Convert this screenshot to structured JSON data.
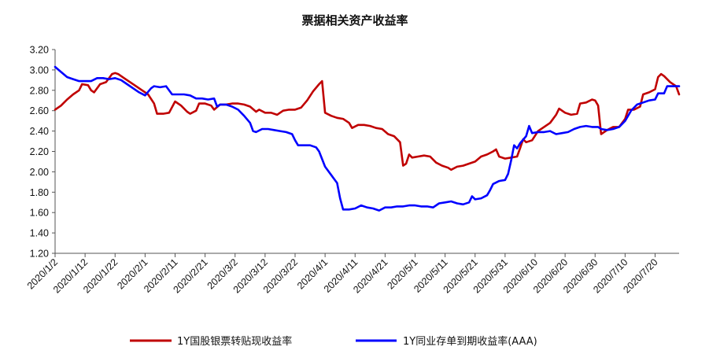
{
  "chart_data": {
    "type": "line",
    "title": "票据相关资产收益率",
    "xlabel": "",
    "ylabel": "",
    "ylim": [
      1.2,
      3.2
    ],
    "yticks": [
      "1.20",
      "1.40",
      "1.60",
      "1.80",
      "2.00",
      "2.20",
      "2.40",
      "2.60",
      "2.80",
      "3.00",
      "3.20"
    ],
    "xticks": [
      {
        "day": 0,
        "label": "2020/1/2"
      },
      {
        "day": 10,
        "label": "2020/1/12"
      },
      {
        "day": 20,
        "label": "2020/1/22"
      },
      {
        "day": 30,
        "label": "2020/2/1"
      },
      {
        "day": 40,
        "label": "2020/2/11"
      },
      {
        "day": 50,
        "label": "2020/2/21"
      },
      {
        "day": 60,
        "label": "2020/3/2"
      },
      {
        "day": 70,
        "label": "2020/3/12"
      },
      {
        "day": 80,
        "label": "2020/3/22"
      },
      {
        "day": 90,
        "label": "2020/4/1"
      },
      {
        "day": 100,
        "label": "2020/4/11"
      },
      {
        "day": 110,
        "label": "2020/4/21"
      },
      {
        "day": 120,
        "label": "2020/5/1"
      },
      {
        "day": 130,
        "label": "2020/5/11"
      },
      {
        "day": 140,
        "label": "2020/5/21"
      },
      {
        "day": 150,
        "label": "2020/5/31"
      },
      {
        "day": 160,
        "label": "2020/6/10"
      },
      {
        "day": 170,
        "label": "2020/6/20"
      },
      {
        "day": 180,
        "label": "2020/6/30"
      },
      {
        "day": 190,
        "label": "2020/7/10"
      },
      {
        "day": 200,
        "label": "2020/7/20"
      }
    ],
    "x_end_day": 208,
    "grid": false,
    "legend_position": "bottom",
    "series": [
      {
        "name": "1Y国股银票转贴现收益率",
        "color": "#C00000",
        "points": [
          [
            0,
            2.61
          ],
          [
            2,
            2.65
          ],
          [
            4,
            2.71
          ],
          [
            6,
            2.76
          ],
          [
            8,
            2.8
          ],
          [
            9,
            2.86
          ],
          [
            11,
            2.85
          ],
          [
            12,
            2.8
          ],
          [
            13,
            2.78
          ],
          [
            15,
            2.86
          ],
          [
            17,
            2.88
          ],
          [
            19,
            2.96
          ],
          [
            20,
            2.97
          ],
          [
            21,
            2.96
          ],
          [
            23,
            2.92
          ],
          [
            25,
            2.88
          ],
          [
            27,
            2.84
          ],
          [
            29,
            2.8
          ],
          [
            31,
            2.76
          ],
          [
            33,
            2.67
          ],
          [
            34,
            2.57
          ],
          [
            36,
            2.57
          ],
          [
            38,
            2.58
          ],
          [
            40,
            2.69
          ],
          [
            42,
            2.65
          ],
          [
            44,
            2.59
          ],
          [
            45,
            2.57
          ],
          [
            47,
            2.6
          ],
          [
            48,
            2.67
          ],
          [
            50,
            2.67
          ],
          [
            52,
            2.65
          ],
          [
            53,
            2.61
          ],
          [
            55,
            2.66
          ],
          [
            57,
            2.66
          ],
          [
            59,
            2.67
          ],
          [
            61,
            2.67
          ],
          [
            63,
            2.66
          ],
          [
            65,
            2.64
          ],
          [
            67,
            2.59
          ],
          [
            68,
            2.61
          ],
          [
            70,
            2.58
          ],
          [
            72,
            2.58
          ],
          [
            74,
            2.56
          ],
          [
            76,
            2.6
          ],
          [
            78,
            2.61
          ],
          [
            80,
            2.61
          ],
          [
            82,
            2.63
          ],
          [
            84,
            2.7
          ],
          [
            86,
            2.79
          ],
          [
            88,
            2.86
          ],
          [
            89,
            2.89
          ],
          [
            90,
            2.58
          ],
          [
            92,
            2.55
          ],
          [
            94,
            2.53
          ],
          [
            96,
            2.52
          ],
          [
            98,
            2.48
          ],
          [
            99,
            2.43
          ],
          [
            101,
            2.46
          ],
          [
            103,
            2.46
          ],
          [
            105,
            2.45
          ],
          [
            107,
            2.43
          ],
          [
            109,
            2.42
          ],
          [
            111,
            2.37
          ],
          [
            113,
            2.35
          ],
          [
            115,
            2.29
          ],
          [
            116,
            2.06
          ],
          [
            117,
            2.08
          ],
          [
            118,
            2.17
          ],
          [
            119,
            2.14
          ],
          [
            121,
            2.15
          ],
          [
            123,
            2.16
          ],
          [
            125,
            2.15
          ],
          [
            127,
            2.09
          ],
          [
            129,
            2.06
          ],
          [
            131,
            2.04
          ],
          [
            132,
            2.02
          ],
          [
            134,
            2.05
          ],
          [
            136,
            2.06
          ],
          [
            138,
            2.08
          ],
          [
            140,
            2.1
          ],
          [
            142,
            2.15
          ],
          [
            144,
            2.17
          ],
          [
            146,
            2.2
          ],
          [
            147,
            2.22
          ],
          [
            148,
            2.15
          ],
          [
            150,
            2.13
          ],
          [
            152,
            2.14
          ],
          [
            154,
            2.15
          ],
          [
            155,
            2.23
          ],
          [
            156,
            2.32
          ],
          [
            157,
            2.29
          ],
          [
            159,
            2.31
          ],
          [
            161,
            2.4
          ],
          [
            163,
            2.44
          ],
          [
            165,
            2.48
          ],
          [
            167,
            2.56
          ],
          [
            168,
            2.62
          ],
          [
            170,
            2.58
          ],
          [
            172,
            2.56
          ],
          [
            174,
            2.57
          ],
          [
            175,
            2.67
          ],
          [
            177,
            2.68
          ],
          [
            179,
            2.71
          ],
          [
            180,
            2.7
          ],
          [
            181,
            2.65
          ],
          [
            182,
            2.37
          ],
          [
            184,
            2.41
          ],
          [
            186,
            2.44
          ],
          [
            188,
            2.44
          ],
          [
            190,
            2.52
          ],
          [
            191,
            2.61
          ],
          [
            193,
            2.61
          ],
          [
            195,
            2.64
          ],
          [
            196,
            2.76
          ],
          [
            198,
            2.78
          ],
          [
            200,
            2.81
          ],
          [
            201,
            2.93
          ],
          [
            202,
            2.96
          ],
          [
            203,
            2.94
          ],
          [
            205,
            2.88
          ],
          [
            207,
            2.84
          ],
          [
            208,
            2.76
          ]
        ]
      },
      {
        "name": "1Y同业存单到期收益率(AAA)",
        "color": "#0000FF",
        "points": [
          [
            0,
            3.03
          ],
          [
            2,
            2.98
          ],
          [
            4,
            2.93
          ],
          [
            6,
            2.91
          ],
          [
            8,
            2.89
          ],
          [
            10,
            2.89
          ],
          [
            12,
            2.89
          ],
          [
            14,
            2.92
          ],
          [
            16,
            2.92
          ],
          [
            18,
            2.91
          ],
          [
            20,
            2.92
          ],
          [
            22,
            2.9
          ],
          [
            24,
            2.86
          ],
          [
            26,
            2.82
          ],
          [
            28,
            2.78
          ],
          [
            30,
            2.75
          ],
          [
            32,
            2.82
          ],
          [
            33,
            2.84
          ],
          [
            35,
            2.83
          ],
          [
            37,
            2.84
          ],
          [
            39,
            2.76
          ],
          [
            41,
            2.76
          ],
          [
            43,
            2.76
          ],
          [
            45,
            2.75
          ],
          [
            47,
            2.72
          ],
          [
            49,
            2.72
          ],
          [
            51,
            2.71
          ],
          [
            53,
            2.72
          ],
          [
            54,
            2.64
          ],
          [
            55,
            2.66
          ],
          [
            57,
            2.66
          ],
          [
            59,
            2.64
          ],
          [
            61,
            2.61
          ],
          [
            63,
            2.55
          ],
          [
            65,
            2.48
          ],
          [
            66,
            2.4
          ],
          [
            67,
            2.39
          ],
          [
            69,
            2.42
          ],
          [
            71,
            2.42
          ],
          [
            73,
            2.41
          ],
          [
            75,
            2.4
          ],
          [
            77,
            2.39
          ],
          [
            79,
            2.37
          ],
          [
            80,
            2.31
          ],
          [
            81,
            2.26
          ],
          [
            83,
            2.26
          ],
          [
            85,
            2.26
          ],
          [
            87,
            2.24
          ],
          [
            88,
            2.2
          ],
          [
            90,
            2.05
          ],
          [
            92,
            1.97
          ],
          [
            93,
            1.93
          ],
          [
            94,
            1.89
          ],
          [
            95,
            1.74
          ],
          [
            96,
            1.63
          ],
          [
            98,
            1.63
          ],
          [
            100,
            1.64
          ],
          [
            102,
            1.67
          ],
          [
            104,
            1.65
          ],
          [
            106,
            1.64
          ],
          [
            108,
            1.62
          ],
          [
            110,
            1.65
          ],
          [
            112,
            1.65
          ],
          [
            114,
            1.66
          ],
          [
            116,
            1.66
          ],
          [
            118,
            1.67
          ],
          [
            120,
            1.67
          ],
          [
            122,
            1.66
          ],
          [
            124,
            1.66
          ],
          [
            126,
            1.65
          ],
          [
            128,
            1.69
          ],
          [
            130,
            1.7
          ],
          [
            132,
            1.71
          ],
          [
            134,
            1.69
          ],
          [
            136,
            1.68
          ],
          [
            138,
            1.7
          ],
          [
            139,
            1.76
          ],
          [
            140,
            1.73
          ],
          [
            142,
            1.74
          ],
          [
            144,
            1.77
          ],
          [
            145,
            1.82
          ],
          [
            146,
            1.88
          ],
          [
            148,
            1.91
          ],
          [
            150,
            1.92
          ],
          [
            151,
            1.98
          ],
          [
            152,
            2.11
          ],
          [
            153,
            2.26
          ],
          [
            154,
            2.23
          ],
          [
            155,
            2.28
          ],
          [
            157,
            2.35
          ],
          [
            158,
            2.45
          ],
          [
            159,
            2.38
          ],
          [
            161,
            2.39
          ],
          [
            163,
            2.39
          ],
          [
            165,
            2.4
          ],
          [
            167,
            2.37
          ],
          [
            169,
            2.38
          ],
          [
            171,
            2.39
          ],
          [
            173,
            2.42
          ],
          [
            175,
            2.44
          ],
          [
            177,
            2.45
          ],
          [
            179,
            2.44
          ],
          [
            181,
            2.44
          ],
          [
            182,
            2.42
          ],
          [
            184,
            2.41
          ],
          [
            186,
            2.42
          ],
          [
            188,
            2.44
          ],
          [
            190,
            2.5
          ],
          [
            192,
            2.6
          ],
          [
            194,
            2.66
          ],
          [
            196,
            2.68
          ],
          [
            198,
            2.7
          ],
          [
            200,
            2.71
          ],
          [
            201,
            2.77
          ],
          [
            203,
            2.77
          ],
          [
            204,
            2.84
          ],
          [
            206,
            2.84
          ],
          [
            208,
            2.84
          ]
        ]
      }
    ]
  }
}
